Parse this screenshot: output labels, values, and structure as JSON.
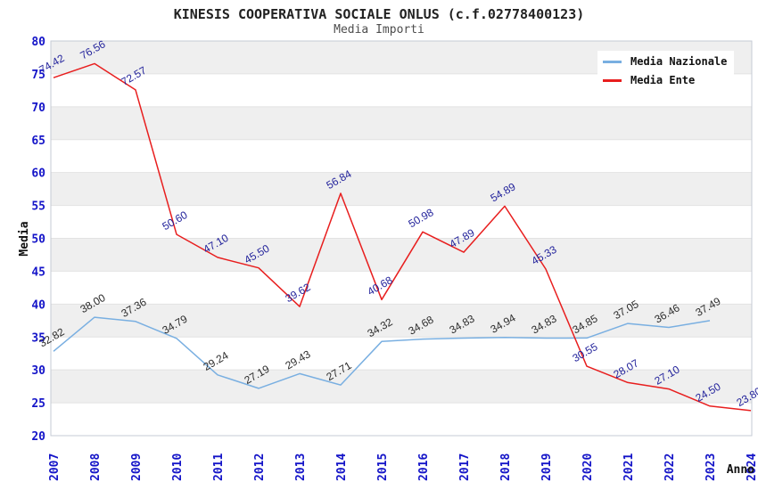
{
  "title": "KINESIS COOPERATIVA SOCIALE ONLUS (c.f.02778400123)",
  "subtitle": "Media Importi",
  "colors": {
    "band": "#efefef",
    "grid": "#e2e2e2",
    "border": "#c6cbd4",
    "tick": "#1414c8",
    "axis_title": "#111111",
    "title": "#222222",
    "subtitle": "#4d4d4d",
    "legend_bg": "#ffffff"
  },
  "chart_data": {
    "type": "line",
    "x": [
      "2007",
      "2008",
      "2009",
      "2010",
      "2011",
      "2012",
      "2013",
      "2014",
      "2015",
      "2016",
      "2017",
      "2018",
      "2019",
      "2020",
      "2021",
      "2022",
      "2023",
      "2024"
    ],
    "series": [
      {
        "name": "Media Nazionale",
        "color": "#79afe1",
        "label_color": "#2b2b2b",
        "values": [
          32.82,
          38.0,
          37.36,
          34.79,
          29.24,
          27.19,
          29.43,
          27.71,
          34.32,
          34.68,
          34.83,
          34.94,
          34.83,
          34.85,
          37.05,
          36.46,
          37.49,
          null
        ]
      },
      {
        "name": "Media Ente",
        "color": "#e81e1e",
        "label_color": "#22229b",
        "values": [
          74.42,
          76.56,
          72.57,
          50.6,
          47.1,
          45.5,
          39.62,
          56.84,
          40.68,
          50.98,
          47.89,
          54.89,
          45.33,
          30.55,
          28.07,
          27.1,
          24.5,
          23.8
        ]
      }
    ],
    "xlabel": "Anno",
    "ylabel": "Media",
    "ylim": [
      20,
      80
    ],
    "ytick_step": 5,
    "grid": "horizontal-bands-alternating",
    "legend_position": "top-right",
    "point_label_format": "2-decimals",
    "point_label_rotation_deg": -30
  }
}
